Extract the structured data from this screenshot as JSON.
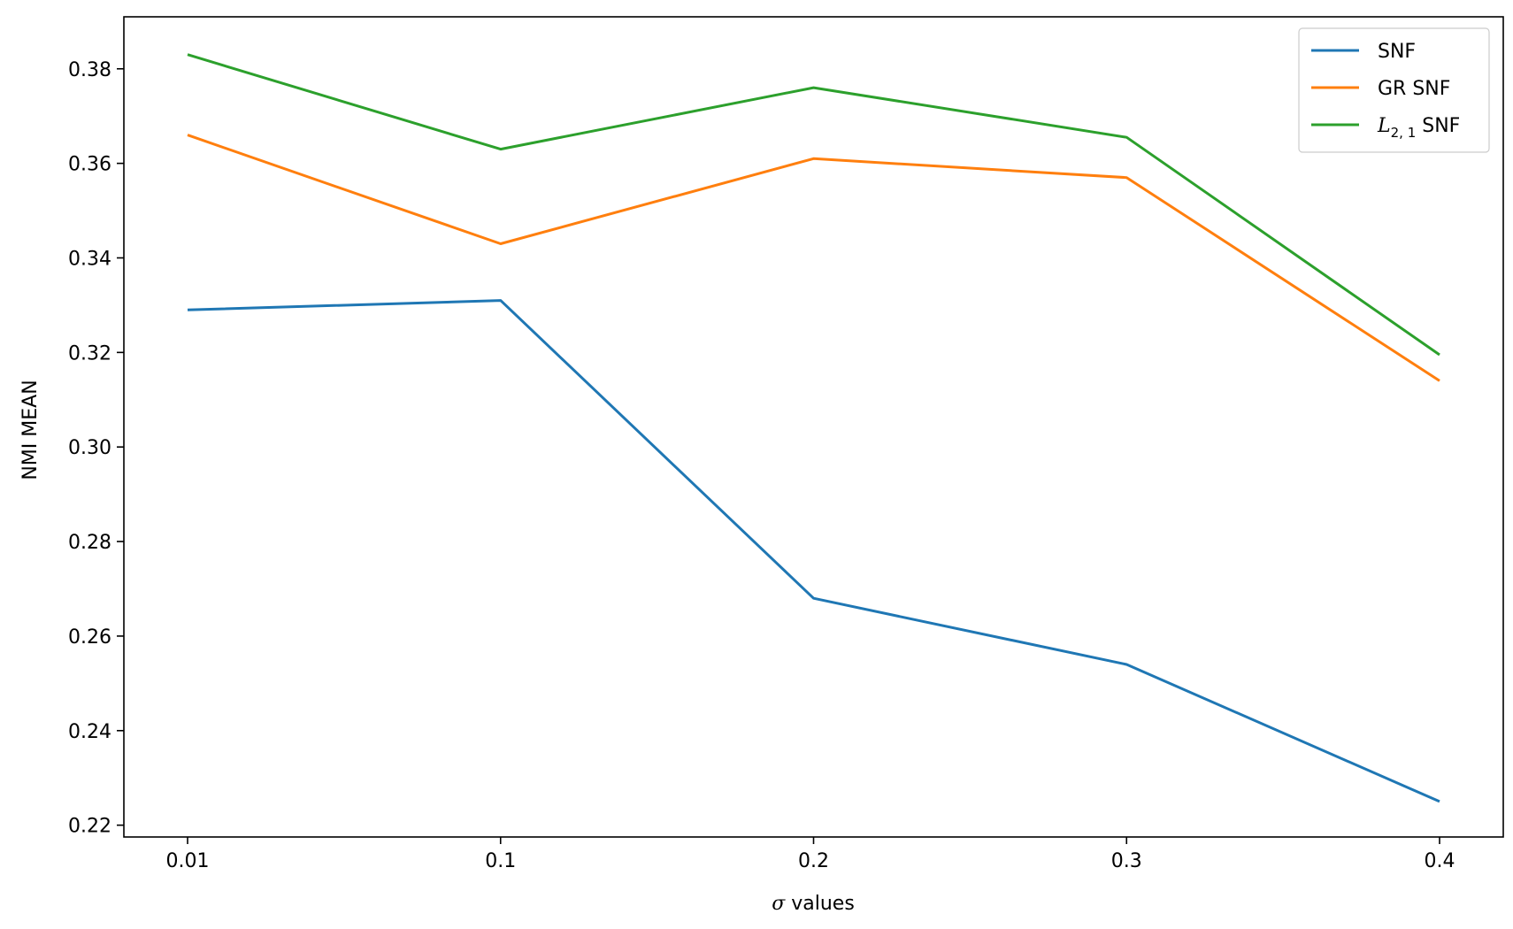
{
  "chart_data": {
    "type": "line",
    "title": "",
    "xlabel_symbol": "σ",
    "xlabel": " values",
    "ylabel": "NMI MEAN",
    "categories": [
      "0.01",
      "0.1",
      "0.2",
      "0.3",
      "0.4"
    ],
    "ylim": [
      0.2175,
      0.391
    ],
    "yticks": [
      0.22,
      0.24,
      0.26,
      0.28,
      0.3,
      0.32,
      0.34,
      0.36,
      0.38
    ],
    "ytick_labels": [
      "0.22",
      "0.24",
      "0.26",
      "0.28",
      "0.30",
      "0.32",
      "0.34",
      "0.36",
      "0.38"
    ],
    "grid": false,
    "legend_placement": "top-right",
    "series": [
      {
        "name": "SNF",
        "color": "#1f77b4",
        "values": [
          0.329,
          0.331,
          0.268,
          0.254,
          0.225
        ]
      },
      {
        "name": "GR SNF",
        "color": "#ff7f0e",
        "values": [
          0.366,
          0.343,
          0.361,
          0.357,
          0.314
        ]
      },
      {
        "name_symbol": "L",
        "name_subscript": "2, 1",
        "name": " SNF",
        "color": "#2ca02c",
        "values": [
          0.383,
          0.363,
          0.376,
          0.3655,
          0.3195
        ]
      }
    ]
  }
}
